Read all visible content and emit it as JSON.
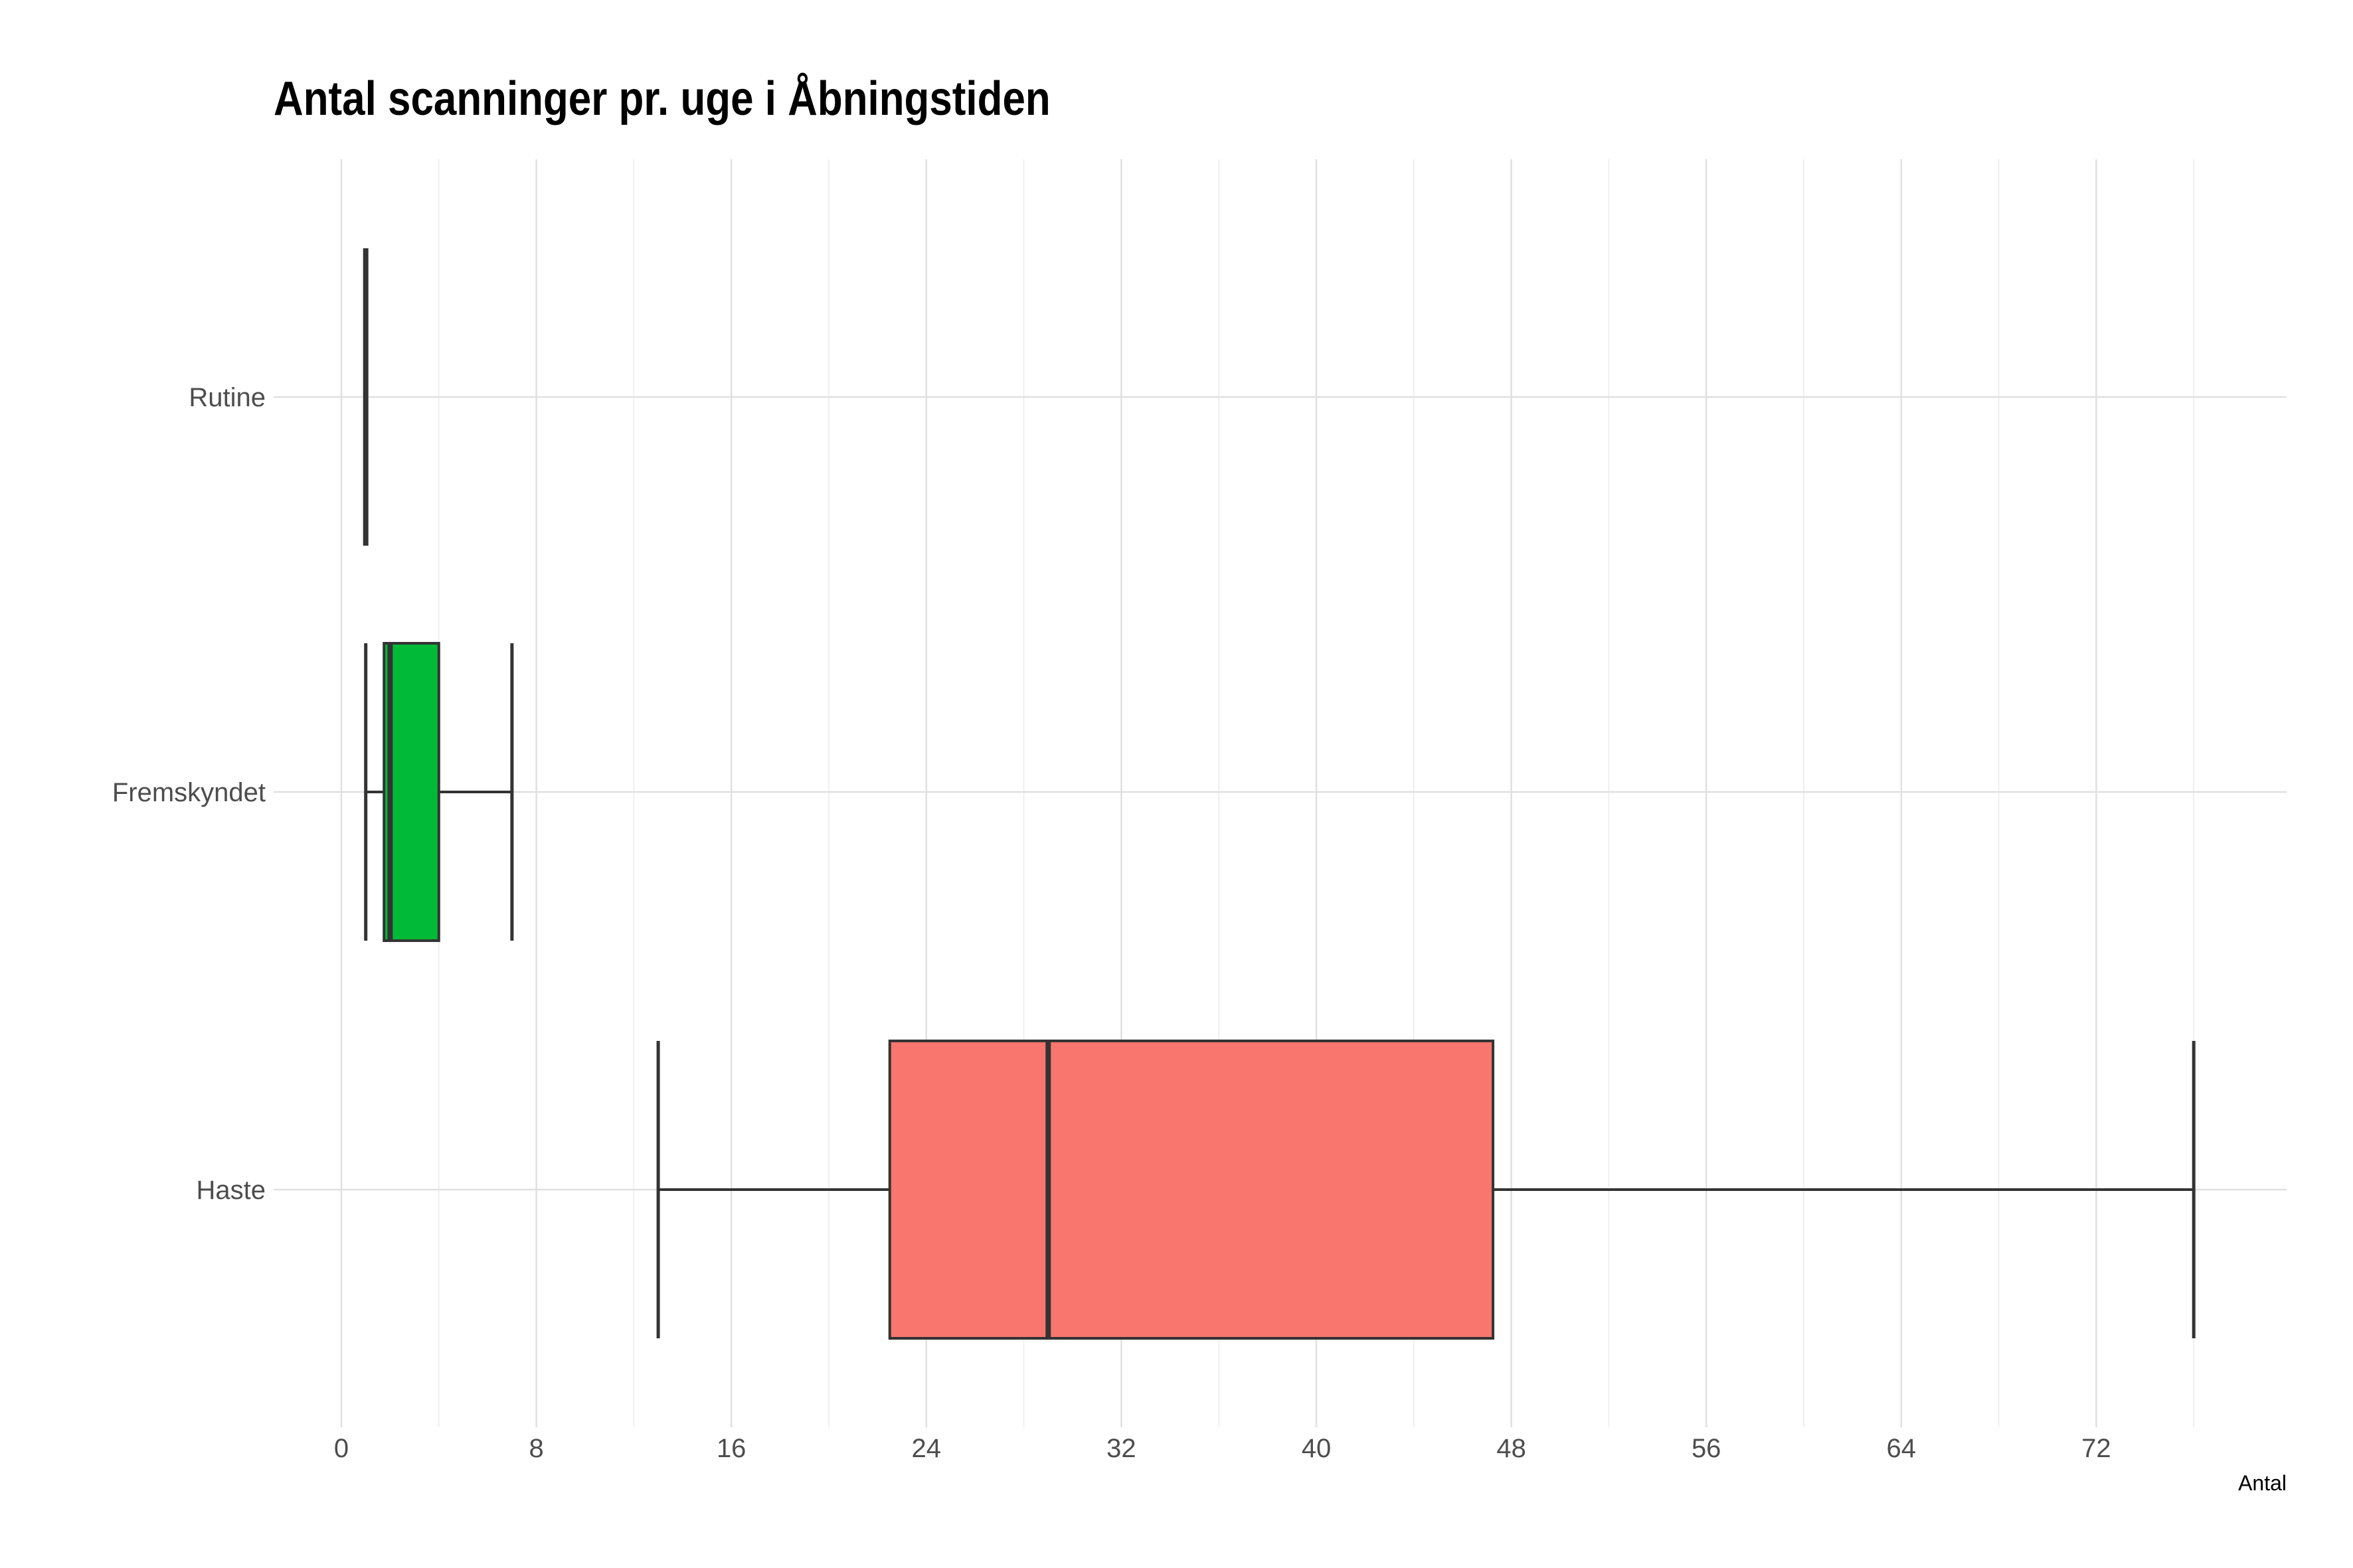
{
  "chart_data": {
    "type": "box",
    "title": "Antal scanninger pr. uge i Åbningstiden",
    "xlabel": "Antal",
    "ylabel": "",
    "xlim": [
      -1.6,
      80
    ],
    "x_ticks": [
      0,
      8,
      16,
      24,
      32,
      40,
      48,
      56,
      64,
      72
    ],
    "grid": true,
    "legend": "none",
    "categories": [
      "Rutine",
      "Fremskyndet",
      "Haste"
    ],
    "series": [
      {
        "category": "Rutine",
        "min": 1,
        "q1": 1,
        "median": 1,
        "q3": 1,
        "max": 1,
        "color": "#619cff"
      },
      {
        "category": "Fremskyndet",
        "min": 1,
        "q1": 1.75,
        "median": 2,
        "q3": 4,
        "max": 7,
        "color": "#00ba38"
      },
      {
        "category": "Haste",
        "min": 13,
        "q1": 22.5,
        "median": 29,
        "q3": 47.25,
        "max": 76,
        "color": "#f8766d"
      }
    ]
  }
}
